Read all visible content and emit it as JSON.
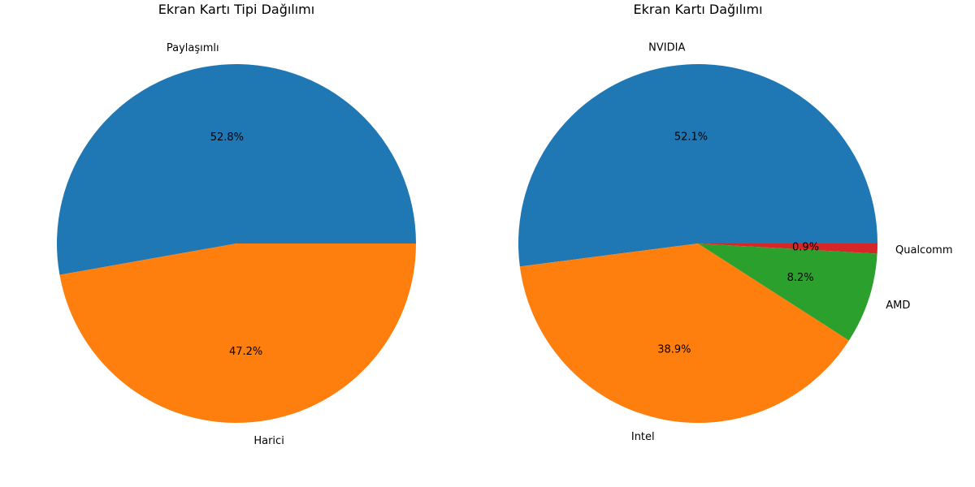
{
  "chart_data": [
    {
      "type": "pie",
      "title": "Ekran Kartı Tipi Dağılımı",
      "categories": [
        "Paylaşımlı",
        "Harici"
      ],
      "values": [
        52.8,
        47.2
      ],
      "value_labels": [
        "52.8%",
        "47.2%"
      ],
      "colors": [
        "#1f77b4",
        "#ff7f0e"
      ],
      "start_angle_deg": 0,
      "direction": "counterclockwise"
    },
    {
      "type": "pie",
      "title": "Ekran Kartı Dağılımı",
      "categories": [
        "NVIDIA",
        "Intel",
        "AMD",
        "Qualcomm"
      ],
      "values": [
        52.1,
        38.9,
        8.2,
        0.9
      ],
      "value_labels": [
        "52.1%",
        "38.9%",
        "8.2%",
        "0.9%"
      ],
      "colors": [
        "#1f77b4",
        "#ff7f0e",
        "#2ca02c",
        "#d62728"
      ],
      "start_angle_deg": 0,
      "direction": "counterclockwise"
    }
  ]
}
